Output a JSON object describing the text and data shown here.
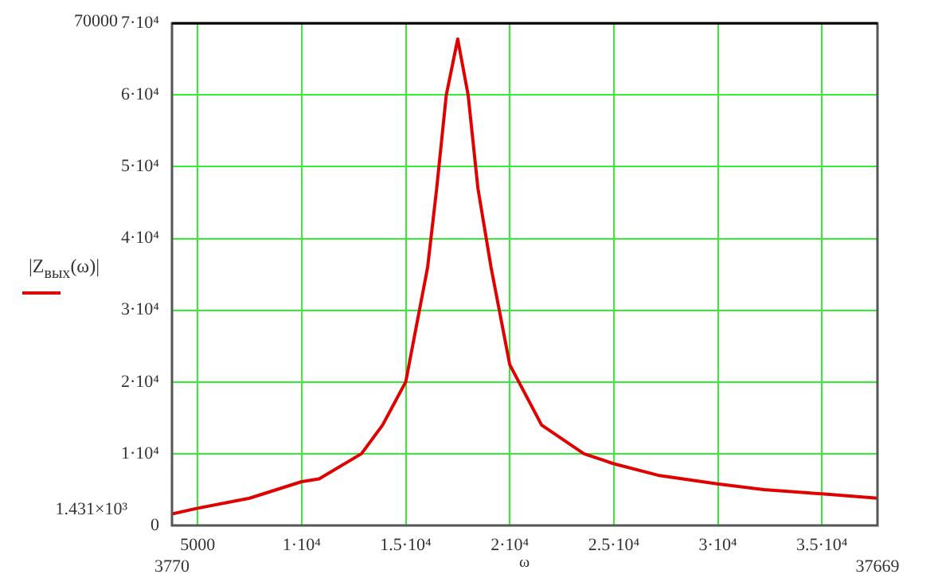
{
  "chart_data": {
    "type": "line",
    "xlabel": "ω",
    "ylabel": "|Z$_{вых}$(ω)|",
    "x": [
      3770,
      5000,
      7500,
      10000,
      10838,
      12875,
      13890,
      15000,
      16054,
      16490,
      16950,
      17500,
      18000,
      18470,
      19100,
      20000,
      21530,
      23560,
      25000,
      27120,
      29970,
      32210,
      35000,
      37669
    ],
    "series": [
      {
        "color": "#e00000",
        "values": [
          1600,
          2400,
          3800,
          6100,
          6500,
          10000,
          14000,
          20000,
          36000,
          47000,
          60000,
          67800,
          60000,
          47000,
          36000,
          22400,
          14000,
          10000,
          8600,
          7000,
          5800,
          5000,
          4400,
          3800
        ]
      }
    ],
    "xlim": [
      3770,
      37669
    ],
    "ylim": [
      0,
      70000
    ],
    "xticks": [
      5000,
      {
        "value": 10000,
        "label": "1·10⁴"
      },
      {
        "value": 15000,
        "label": "1.5·10⁴"
      },
      {
        "value": 20000,
        "label": "2·10⁴"
      },
      {
        "value": 25000,
        "label": "2.5·10⁴"
      },
      {
        "value": 30000,
        "label": "3·10⁴"
      },
      {
        "value": 35000,
        "label": "3.5·10⁴"
      }
    ],
    "yticks": [
      0,
      {
        "value": 10000,
        "label": "1·10⁴"
      },
      {
        "value": 20000,
        "label": "2·10⁴"
      },
      {
        "value": 30000,
        "label": "3·10⁴"
      },
      {
        "value": 40000,
        "label": "4·10⁴"
      },
      {
        "value": 50000,
        "label": "5·10⁴"
      },
      {
        "value": 60000,
        "label": "6·10⁴"
      },
      {
        "value": 70000,
        "label": "7·10⁴"
      }
    ],
    "annotations": [
      "70000",
      "1.431×10³",
      "3770",
      "37669"
    ],
    "grid": true,
    "legend": false,
    "marker": "none",
    "line_style": "solid"
  }
}
